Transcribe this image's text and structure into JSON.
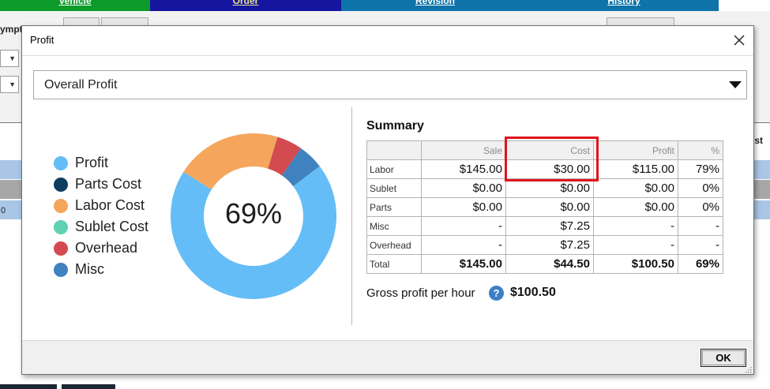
{
  "background": {
    "tabs": [
      {
        "label": "Vehicle"
      },
      {
        "label": "Order"
      },
      {
        "label": "Revision"
      },
      {
        "label": "History"
      }
    ],
    "field_label": "ympt",
    "cell_value": "0",
    "column_label": "ist"
  },
  "dialog": {
    "title": "Profit",
    "view_select": {
      "value": "Overall Profit"
    },
    "legend": [
      {
        "label": "Profit",
        "color": "#64bdf7"
      },
      {
        "label": "Parts Cost",
        "color": "#0f3d5f"
      },
      {
        "label": "Labor Cost",
        "color": "#f6a55c"
      },
      {
        "label": "Sublet Cost",
        "color": "#5fd1b3"
      },
      {
        "label": "Overhead",
        "color": "#d34a4f"
      },
      {
        "label": "Misc",
        "color": "#3f82bf"
      }
    ],
    "donut": {
      "center_label": "69%",
      "segments": [
        {
          "name": "Profit",
          "value": 100.5,
          "color": "#64bdf7"
        },
        {
          "name": "Labor Cost",
          "value": 30.0,
          "color": "#f6a55c"
        },
        {
          "name": "Overhead",
          "value": 7.25,
          "color": "#d34a4f"
        },
        {
          "name": "Misc",
          "value": 7.25,
          "color": "#3f82bf"
        }
      ]
    },
    "summary": {
      "title": "Summary",
      "headers": [
        "",
        "Sale",
        "Cost",
        "Profit",
        "%"
      ],
      "rows": [
        {
          "label": "Labor",
          "sale": "$145.00",
          "cost": "$30.00",
          "profit": "$115.00",
          "pct": "79%"
        },
        {
          "label": "Sublet",
          "sale": "$0.00",
          "cost": "$0.00",
          "profit": "$0.00",
          "pct": "0%"
        },
        {
          "label": "Parts",
          "sale": "$0.00",
          "cost": "$0.00",
          "profit": "$0.00",
          "pct": "0%"
        },
        {
          "label": "Misc",
          "sale": "-",
          "cost": "$7.25",
          "profit": "-",
          "pct": "-"
        },
        {
          "label": "Overhead",
          "sale": "-",
          "cost": "$7.25",
          "profit": "-",
          "pct": "-"
        },
        {
          "label": "Total",
          "sale": "$145.00",
          "cost": "$44.50",
          "profit": "$100.50",
          "pct": "69%"
        }
      ]
    },
    "gross_profit": {
      "label": "Gross profit per hour",
      "help_icon": "?",
      "value": "$100.50"
    },
    "ok_label": "OK",
    "highlight_color": "#e0151e"
  }
}
